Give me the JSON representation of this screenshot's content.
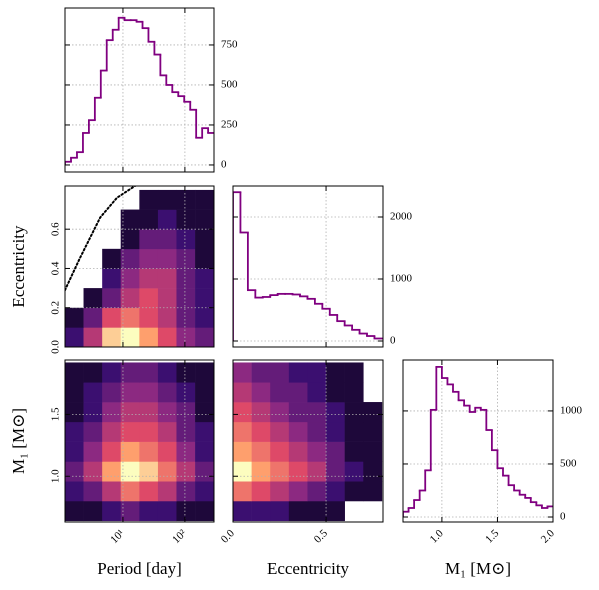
{
  "chart_data": [
    {
      "type": "histogram",
      "xscale": "log",
      "xlim": [
        1.16,
        295
      ],
      "ylim": [
        -44,
        981
      ],
      "yticks": [
        0,
        250,
        500,
        750
      ],
      "yaxis_side": "right",
      "grid": true,
      "color": "#800080",
      "bins": [
        1.16,
        1.45,
        1.81,
        2.26,
        2.82,
        3.52,
        4.39,
        5.47,
        6.84,
        8.53,
        10.6,
        13.3,
        16.6,
        20.7,
        25.8,
        32.2,
        40.2,
        50.1,
        62.6,
        78.2,
        97.5,
        122,
        152,
        190,
        237,
        295
      ],
      "values": [
        20,
        45,
        80,
        200,
        280,
        420,
        590,
        780,
        845,
        920,
        905,
        905,
        895,
        855,
        770,
        690,
        560,
        500,
        455,
        430,
        395,
        345,
        170,
        230,
        200
      ],
      "xticks": [
        {
          "value": 10,
          "label": "10¹"
        },
        {
          "value": 100,
          "label": "10²"
        }
      ]
    },
    {
      "type": "heatmap",
      "xscale": "log",
      "xlim": [
        1.16,
        295
      ],
      "ylim": [
        0,
        0.82
      ],
      "grid": true,
      "colormap": "magma",
      "ylabel": "Eccentricity",
      "xticks": [
        {
          "value": 10,
          "label": "10¹"
        },
        {
          "value": 100,
          "label": "10²"
        }
      ],
      "yticks": [
        {
          "value": 0,
          "label": "0.0"
        },
        0.2,
        0.4,
        0.6
      ],
      "x_edges": [
        1.16,
        2.31,
        4.62,
        9.2,
        18.4,
        36.7,
        73.1,
        146,
        292
      ],
      "y_edges": [
        0,
        0.1,
        0.2,
        0.3,
        0.4,
        0.5,
        0.6,
        0.7,
        0.8
      ],
      "density": [
        [
          2,
          5,
          9,
          10,
          8,
          6,
          4,
          3
        ],
        [
          1,
          3,
          6,
          7,
          6,
          5,
          3,
          2
        ],
        [
          0,
          1,
          3,
          5,
          6,
          5,
          3,
          2
        ],
        [
          0,
          0,
          2,
          4,
          5,
          5,
          3,
          2
        ],
        [
          0,
          0,
          1,
          3,
          4,
          4,
          3,
          1
        ],
        [
          0,
          0,
          0,
          1,
          3,
          3,
          2,
          1
        ],
        [
          0,
          0,
          0,
          1,
          1,
          2,
          1,
          1
        ],
        [
          0,
          0,
          0,
          0,
          1,
          1,
          1,
          1
        ]
      ],
      "lines": [
        {
          "x": [
            1.16,
            2,
            4.3,
            8,
            15.6
          ],
          "y": [
            0.29,
            0.45,
            0.66,
            0.76,
            0.82
          ],
          "color": "#000000",
          "style": "dotted"
        }
      ]
    },
    {
      "type": "heatmap",
      "xscale": "log",
      "xlim": [
        1.16,
        295
      ],
      "ylim": [
        0.63,
        1.94
      ],
      "grid": true,
      "colormap": "magma",
      "xlabel": "Period [day]",
      "ylabel": "M₁ [M⊙]",
      "xtick_rotation": 45,
      "xticks": [
        {
          "value": 10,
          "label": "10¹"
        },
        {
          "value": 100,
          "label": "10²"
        }
      ],
      "yticks": [
        {
          "value": 1,
          "label": "1.0"
        },
        1.5
      ],
      "x_edges": [
        1.16,
        2.31,
        4.62,
        9.2,
        18.4,
        36.7,
        73.1,
        146,
        292
      ],
      "y_edges": [
        0.64,
        0.8,
        0.96,
        1.12,
        1.28,
        1.44,
        1.6,
        1.76,
        1.92
      ],
      "density": [
        [
          1,
          1,
          2,
          3,
          2,
          2,
          1,
          1
        ],
        [
          2,
          3,
          5,
          7,
          6,
          5,
          3,
          2
        ],
        [
          3,
          5,
          8,
          10,
          9,
          7,
          5,
          3
        ],
        [
          2,
          4,
          6,
          8,
          7,
          6,
          4,
          2
        ],
        [
          2,
          3,
          5,
          6,
          6,
          5,
          3,
          2
        ],
        [
          1,
          2,
          4,
          5,
          5,
          4,
          3,
          1
        ],
        [
          1,
          2,
          3,
          4,
          4,
          3,
          2,
          1
        ],
        [
          1,
          1,
          2,
          3,
          3,
          2,
          1,
          1
        ]
      ]
    },
    {
      "type": "histogram",
      "xlim": [
        0,
        0.806
      ],
      "ylim": [
        -97,
        2500
      ],
      "yticks": [
        0,
        1000,
        2000
      ],
      "yaxis_side": "right",
      "grid": true,
      "color": "#800080",
      "bins": [
        0,
        0.04,
        0.08,
        0.12,
        0.16,
        0.2,
        0.24,
        0.28,
        0.32,
        0.36,
        0.4,
        0.44,
        0.48,
        0.52,
        0.56,
        0.6,
        0.64,
        0.68,
        0.72,
        0.76,
        0.8
      ],
      "values": [
        2400,
        1750,
        820,
        700,
        710,
        740,
        760,
        760,
        750,
        720,
        680,
        600,
        520,
        420,
        320,
        250,
        180,
        120,
        80,
        40
      ],
      "xticks": [
        {
          "value": 0,
          "label": "0.0"
        },
        0.5
      ]
    },
    {
      "type": "heatmap",
      "xlim": [
        0,
        0.806
      ],
      "ylim": [
        0.63,
        1.94
      ],
      "grid": true,
      "colormap": "magma",
      "xlabel": "Eccentricity",
      "xtick_rotation": 45,
      "xticks": [
        {
          "value": 0,
          "label": "0.0"
        },
        0.5
      ],
      "yticks": [
        {
          "value": 1,
          "label": "1.0"
        },
        1.5
      ],
      "x_edges": [
        0,
        0.1,
        0.2,
        0.3,
        0.4,
        0.5,
        0.6,
        0.7,
        0.8
      ],
      "y_edges": [
        0.64,
        0.8,
        0.96,
        1.12,
        1.28,
        1.44,
        1.6,
        1.76,
        1.92
      ],
      "density": [
        [
          2,
          2,
          2,
          1,
          1,
          1,
          0,
          0
        ],
        [
          7,
          6,
          5,
          4,
          3,
          2,
          1,
          1
        ],
        [
          10,
          8,
          7,
          6,
          5,
          3,
          2,
          1
        ],
        [
          8,
          7,
          6,
          5,
          4,
          3,
          1,
          1
        ],
        [
          7,
          6,
          5,
          4,
          3,
          2,
          1,
          1
        ],
        [
          6,
          5,
          4,
          3,
          3,
          2,
          1,
          1
        ],
        [
          5,
          4,
          3,
          3,
          2,
          1,
          1,
          0
        ],
        [
          4,
          3,
          3,
          2,
          2,
          1,
          1,
          0
        ]
      ]
    },
    {
      "type": "histogram",
      "xlim": [
        0.65,
        2.0
      ],
      "ylim": [
        -47,
        1480
      ],
      "yticks": [
        0,
        500,
        1000
      ],
      "yaxis_side": "right",
      "grid": true,
      "color": "#800080",
      "xlabel": "M₁ [M⊙]",
      "xtick_rotation": 45,
      "bins": [
        0.65,
        0.7,
        0.75,
        0.8,
        0.85,
        0.9,
        0.95,
        1.0,
        1.05,
        1.1,
        1.15,
        1.2,
        1.25,
        1.3,
        1.35,
        1.4,
        1.45,
        1.5,
        1.55,
        1.6,
        1.65,
        1.7,
        1.75,
        1.8,
        1.85,
        1.9,
        1.95,
        2.0
      ],
      "values": [
        50,
        85,
        160,
        250,
        440,
        1010,
        1415,
        1310,
        1250,
        1180,
        1100,
        1050,
        990,
        1030,
        1010,
        820,
        630,
        460,
        390,
        300,
        250,
        210,
        180,
        140,
        110,
        85,
        100
      ],
      "xticks": [
        {
          "value": 1,
          "label": "1.0"
        },
        1.5,
        {
          "value": 2,
          "label": "2.0"
        }
      ]
    }
  ]
}
